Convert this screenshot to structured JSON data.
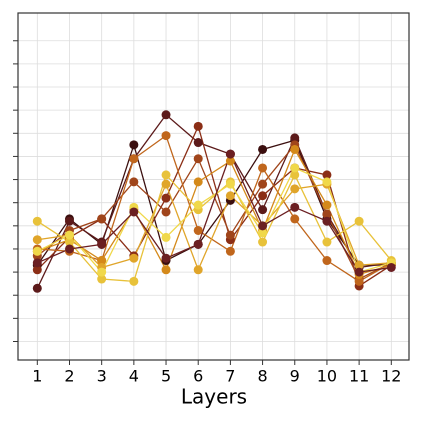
{
  "chart_data": {
    "type": "line",
    "x_label": "Layers",
    "x": [
      1,
      2,
      3,
      4,
      5,
      6,
      7,
      8,
      9,
      10,
      11,
      12
    ],
    "xlim": [
      0.4,
      12.55
    ],
    "xticks": [
      1,
      2,
      3,
      4,
      5,
      6,
      7,
      8,
      9,
      10,
      11,
      12
    ],
    "ylim": [
      0.2,
      15.2
    ],
    "yticks": [
      1,
      2,
      3,
      4,
      5,
      6,
      7,
      8,
      9,
      10,
      11,
      12,
      13,
      14
    ],
    "ytick_labels": false,
    "grid": true,
    "series": [
      {
        "color": "#3b0f0f",
        "values": [
          4.3,
          6.3,
          5.2,
          9.5,
          4.5,
          5.2,
          7.1,
          9.3,
          9.7,
          6.3,
          4.3,
          4.3
        ]
      },
      {
        "color": "#5c1a1a",
        "values": [
          3.3,
          6.2,
          5.3,
          8.9,
          10.8,
          9.6,
          9.1,
          6.7,
          9.8,
          6.5,
          4.2,
          4.4
        ]
      },
      {
        "color": "#8b2e16",
        "values": [
          4.1,
          5.5,
          6.3,
          4.7,
          7.2,
          10.3,
          5.4,
          7.3,
          8.5,
          8.2,
          3.4,
          4.3
        ]
      },
      {
        "color": "#a0451b",
        "values": [
          4.7,
          5.8,
          6.3,
          7.9,
          6.6,
          8.9,
          5.6,
          7.8,
          9.5,
          6.5,
          3.7,
          4.4
        ]
      },
      {
        "color": "#c0661c",
        "values": [
          5.0,
          4.9,
          4.5,
          8.9,
          9.9,
          5.8,
          4.9,
          8.5,
          6.3,
          4.5,
          3.6,
          4.4
        ]
      },
      {
        "color": "#d4891a",
        "values": [
          4.9,
          5.4,
          4.5,
          6.7,
          4.1,
          7.9,
          8.8,
          5.8,
          9.3,
          6.9,
          3.9,
          4.3
        ]
      },
      {
        "color": "#e0a52a",
        "values": [
          5.4,
          5.6,
          4.2,
          4.6,
          7.8,
          4.1,
          7.3,
          6.0,
          7.6,
          7.8,
          4.3,
          4.4
        ]
      },
      {
        "color": "#e8c23a",
        "values": [
          6.2,
          5.3,
          3.7,
          3.6,
          8.2,
          6.7,
          7.9,
          5.3,
          8.2,
          5.3,
          6.2,
          4.5
        ]
      },
      {
        "color": "#f0d84a",
        "values": [
          4.9,
          5.6,
          4.0,
          6.8,
          5.5,
          6.9,
          7.8,
          5.7,
          8.5,
          7.9,
          4.0,
          4.4
        ]
      },
      {
        "color": "#6b1f22",
        "values": [
          4.4,
          5.0,
          5.2,
          6.6,
          4.6,
          5.2,
          9.1,
          6.0,
          6.8,
          6.2,
          4.0,
          4.2
        ]
      }
    ]
  }
}
